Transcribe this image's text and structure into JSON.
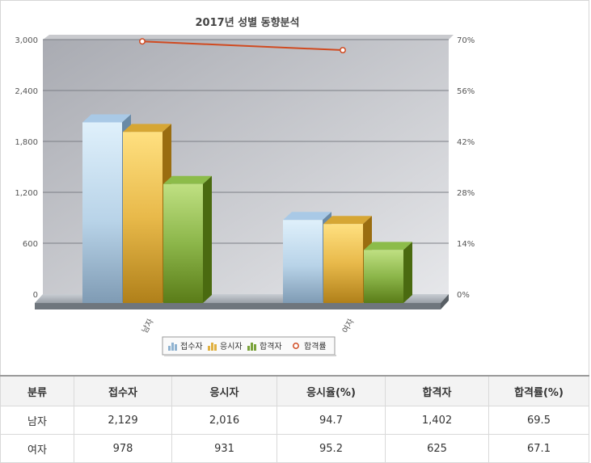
{
  "chart_data": {
    "type": "bar",
    "title": "2017년 성별 동향분석",
    "categories": [
      "남자",
      "여자"
    ],
    "series": [
      {
        "name": "접수자",
        "values": [
          2129,
          978
        ],
        "color": "#8fb2d0",
        "kind": "bar"
      },
      {
        "name": "응시자",
        "values": [
          2016,
          931
        ],
        "color": "#e0b040",
        "kind": "bar"
      },
      {
        "name": "합격자",
        "values": [
          1402,
          625
        ],
        "color": "#7aa23a",
        "kind": "bar"
      },
      {
        "name": "합격률",
        "values": [
          69.5,
          67.1
        ],
        "color": "#d04a20",
        "kind": "line",
        "axis": "right"
      }
    ],
    "y_left": {
      "min": 0,
      "max": 3000,
      "ticks": [
        "0",
        "600",
        "1,200",
        "1,800",
        "2,400",
        "3,000"
      ]
    },
    "y_right": {
      "min": 0,
      "max": 70,
      "ticks": [
        "0%",
        "14%",
        "28%",
        "42%",
        "56%",
        "70%"
      ]
    },
    "grid": true,
    "legend_position": "bottom"
  },
  "table": {
    "headers": [
      "분류",
      "접수자",
      "응시자",
      "응시율(%)",
      "합격자",
      "합격률(%)"
    ],
    "rows": [
      [
        "남자",
        "2,129",
        "2,016",
        "94.7",
        "1,402",
        "69.5"
      ],
      [
        "여자",
        "978",
        "931",
        "95.2",
        "625",
        "67.1"
      ]
    ]
  }
}
